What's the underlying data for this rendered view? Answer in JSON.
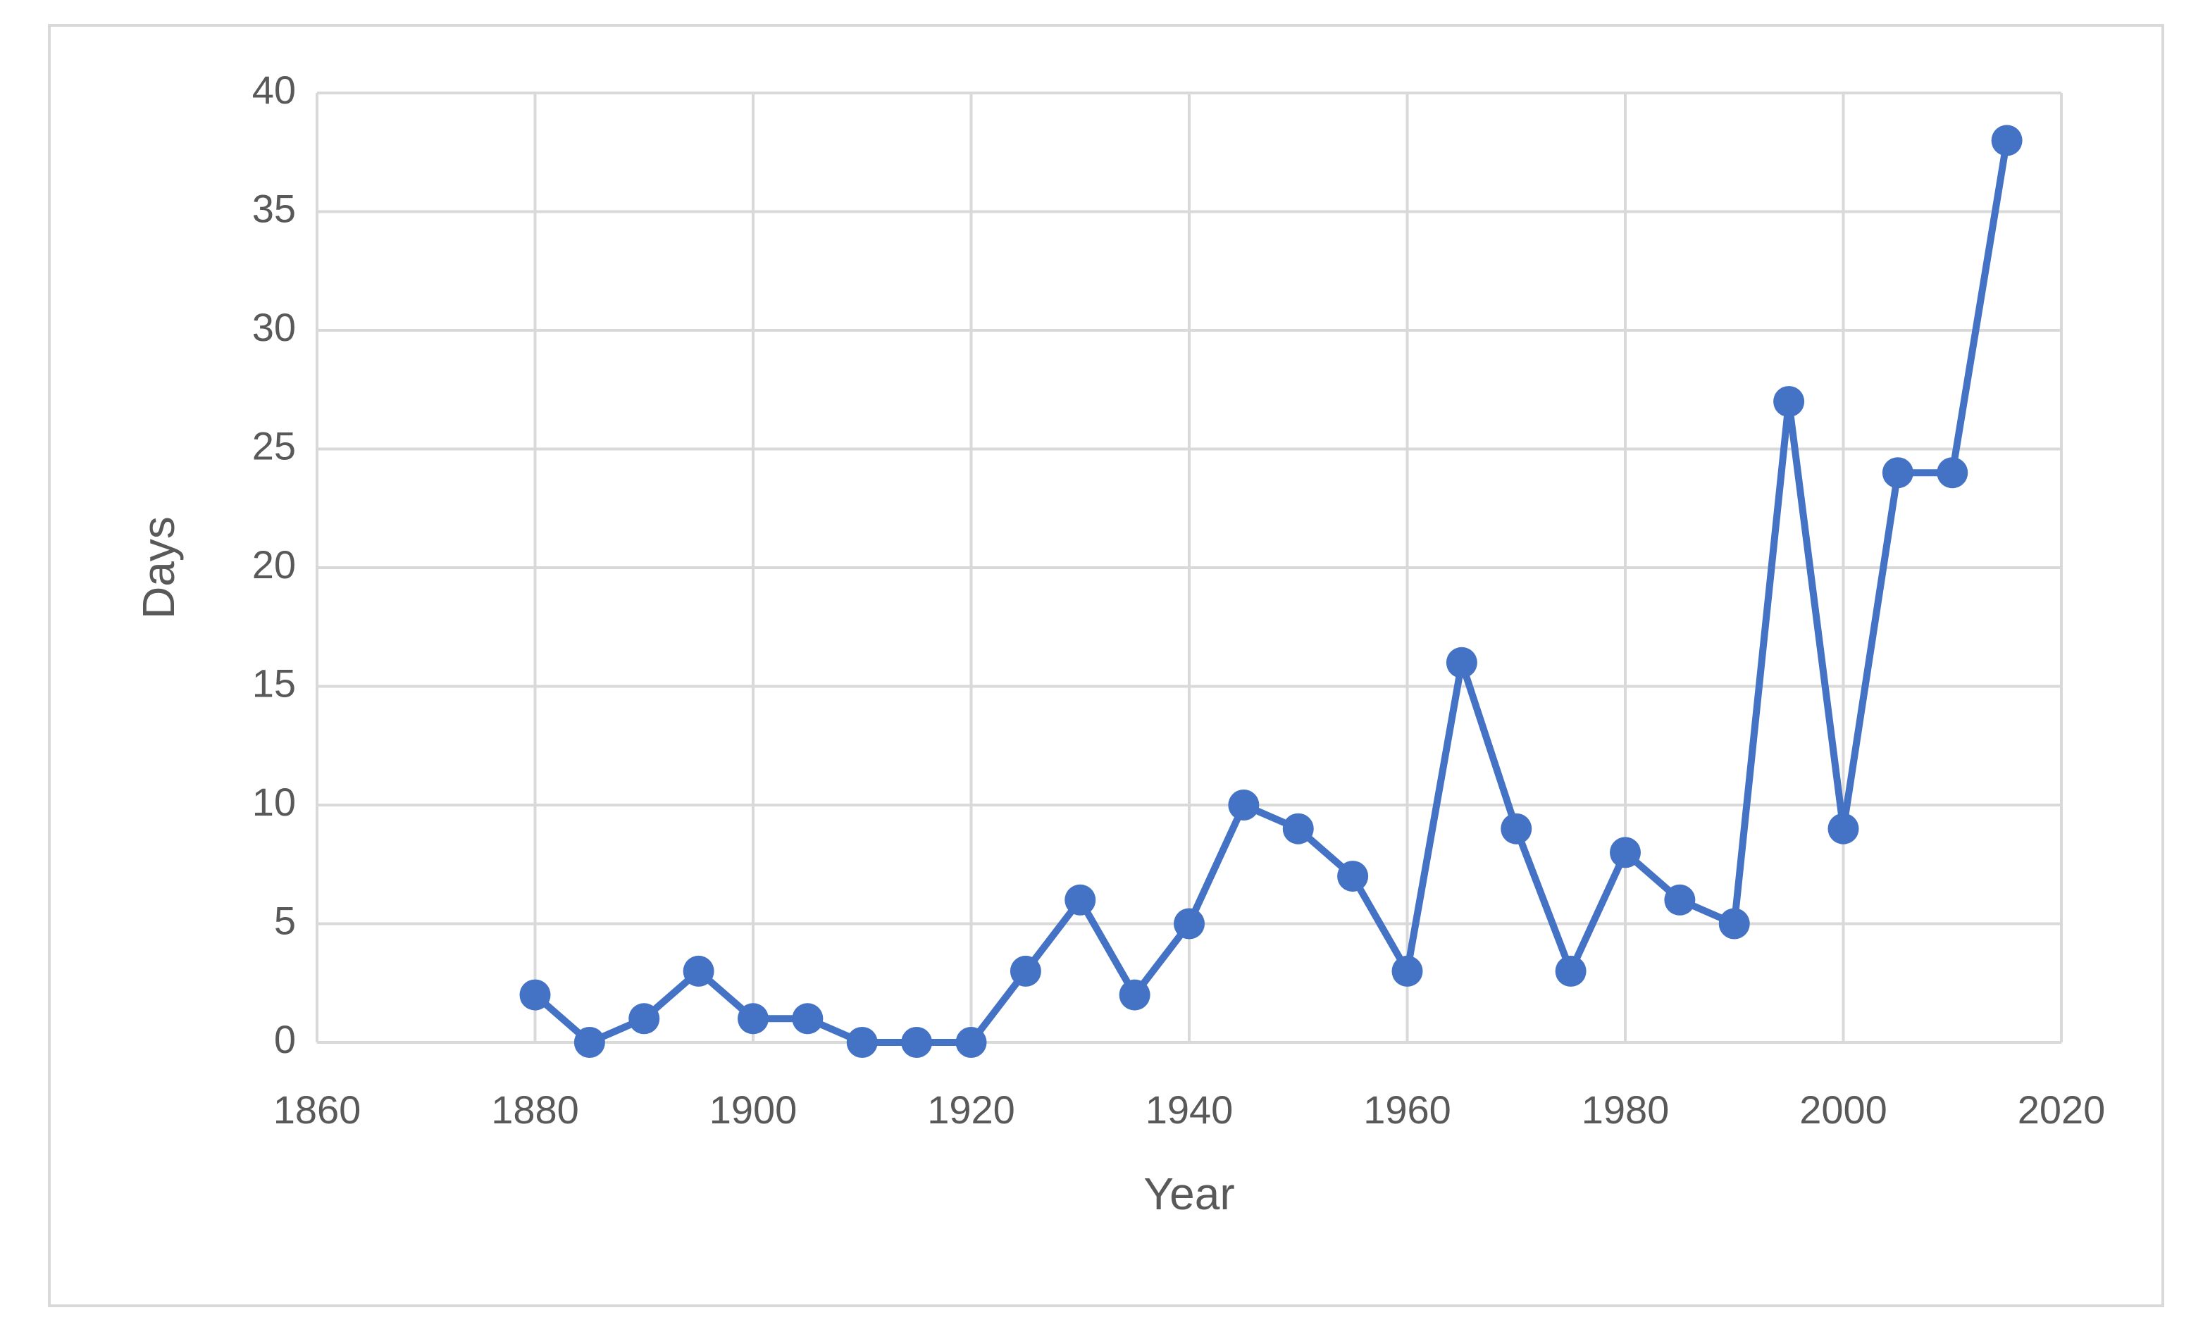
{
  "chart_data": {
    "type": "line",
    "xlabel": "Year",
    "ylabel": "Days",
    "x": [
      1880,
      1885,
      1890,
      1895,
      1900,
      1905,
      1910,
      1915,
      1920,
      1925,
      1930,
      1935,
      1940,
      1945,
      1950,
      1955,
      1960,
      1965,
      1970,
      1975,
      1980,
      1985,
      1990,
      1995,
      2000,
      2005,
      2010,
      2015
    ],
    "values": [
      2,
      0,
      1,
      3,
      1,
      1,
      0,
      0,
      0,
      3,
      6,
      2,
      5,
      10,
      9,
      7,
      3,
      16,
      9,
      3,
      8,
      6,
      5,
      27,
      9,
      24,
      24,
      38
    ],
    "color": "#4472c4",
    "xlim": [
      1860,
      2020
    ],
    "xticks": [
      1860,
      1880,
      1900,
      1920,
      1940,
      1960,
      1980,
      2000,
      2020
    ],
    "ylim": [
      0,
      40
    ],
    "yticks": [
      0,
      5,
      10,
      15,
      20,
      25,
      30,
      35,
      40
    ],
    "grid": true,
    "markers": true
  }
}
